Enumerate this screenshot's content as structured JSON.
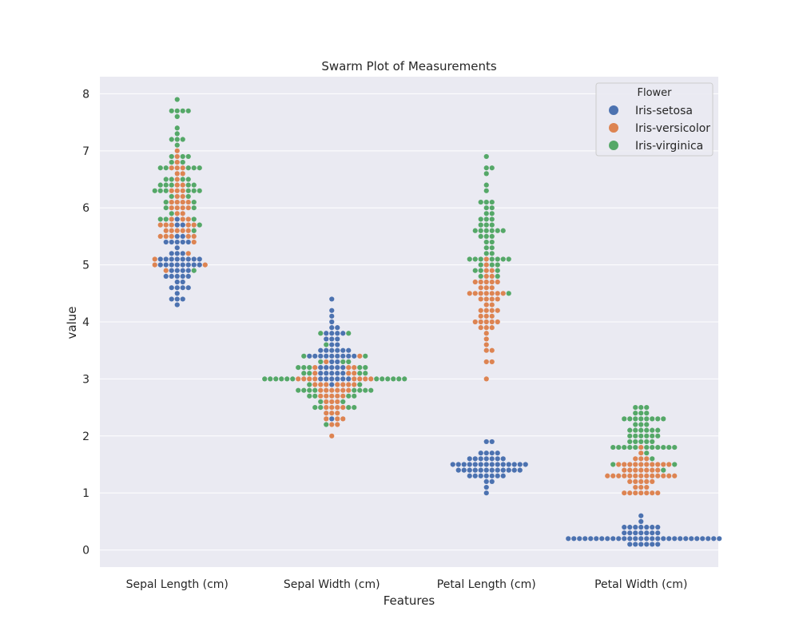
{
  "chart_data": {
    "type": "scatter",
    "subtype": "swarm",
    "title": "Swarm Plot of Measurements",
    "xlabel": "Features",
    "ylabel": "value",
    "categories": [
      "Sepal Length (cm)",
      "Sepal Width (cm)",
      "Petal Length (cm)",
      "Petal Width (cm)"
    ],
    "ylim": [
      -0.3,
      8.3
    ],
    "yticks": [
      0,
      1,
      2,
      3,
      4,
      5,
      6,
      7,
      8
    ],
    "grid": true,
    "background_color": "#eaeaf2",
    "legend": {
      "title": "Flower",
      "placement": "top-right"
    },
    "series": [
      {
        "name": "Iris-setosa",
        "color": "#4c72b0",
        "values": [
          [
            5.1,
            4.9,
            4.7,
            4.6,
            5.0,
            5.4,
            4.6,
            5.0,
            4.4,
            4.9,
            5.4,
            4.8,
            4.8,
            4.3,
            5.8,
            5.7,
            5.4,
            5.1,
            5.7,
            5.1,
            5.4,
            5.1,
            4.6,
            5.1,
            4.8,
            5.0,
            5.0,
            5.2,
            5.2,
            4.7,
            4.8,
            5.4,
            5.2,
            5.5,
            4.9,
            5.0,
            5.5,
            4.9,
            4.4,
            5.1,
            5.0,
            4.5,
            4.4,
            5.0,
            5.1,
            4.8,
            5.1,
            4.6,
            5.3,
            5.0
          ],
          [
            3.5,
            3.0,
            3.2,
            3.1,
            3.6,
            3.9,
            3.4,
            3.4,
            2.9,
            3.1,
            3.7,
            3.4,
            3.0,
            3.0,
            4.0,
            4.4,
            3.9,
            3.5,
            3.8,
            3.8,
            3.4,
            3.7,
            3.6,
            3.3,
            3.4,
            3.0,
            3.4,
            3.5,
            3.4,
            3.2,
            3.1,
            3.4,
            4.1,
            4.2,
            3.1,
            3.2,
            3.5,
            3.1,
            3.0,
            3.4,
            3.5,
            2.3,
            3.2,
            3.5,
            3.8,
            3.0,
            3.8,
            3.2,
            3.7,
            3.3
          ],
          [
            1.4,
            1.4,
            1.3,
            1.5,
            1.4,
            1.7,
            1.4,
            1.5,
            1.4,
            1.5,
            1.5,
            1.6,
            1.4,
            1.1,
            1.2,
            1.5,
            1.3,
            1.4,
            1.7,
            1.5,
            1.7,
            1.5,
            1.0,
            1.7,
            1.9,
            1.6,
            1.6,
            1.5,
            1.4,
            1.6,
            1.6,
            1.5,
            1.5,
            1.4,
            1.5,
            1.2,
            1.3,
            1.5,
            1.3,
            1.5,
            1.3,
            1.3,
            1.3,
            1.6,
            1.9,
            1.4,
            1.6,
            1.4,
            1.5,
            1.4
          ],
          [
            0.2,
            0.2,
            0.2,
            0.2,
            0.2,
            0.4,
            0.3,
            0.2,
            0.2,
            0.1,
            0.2,
            0.2,
            0.1,
            0.1,
            0.2,
            0.4,
            0.4,
            0.3,
            0.3,
            0.3,
            0.2,
            0.4,
            0.2,
            0.5,
            0.2,
            0.2,
            0.4,
            0.2,
            0.2,
            0.2,
            0.2,
            0.4,
            0.1,
            0.2,
            0.1,
            0.2,
            0.2,
            0.1,
            0.2,
            0.2,
            0.3,
            0.3,
            0.2,
            0.6,
            0.4,
            0.3,
            0.2,
            0.2,
            0.2,
            0.2
          ]
        ]
      },
      {
        "name": "Iris-versicolor",
        "color": "#dd8452",
        "values": [
          [
            7.0,
            6.4,
            6.9,
            5.5,
            6.5,
            5.7,
            6.3,
            4.9,
            6.6,
            5.2,
            5.0,
            5.9,
            6.0,
            6.1,
            5.6,
            6.7,
            5.6,
            5.8,
            6.2,
            5.6,
            5.9,
            6.1,
            6.3,
            6.1,
            6.4,
            6.6,
            6.8,
            6.7,
            6.0,
            5.7,
            5.5,
            5.5,
            5.8,
            6.0,
            5.4,
            6.0,
            6.7,
            6.3,
            5.6,
            5.5,
            5.5,
            6.1,
            5.8,
            5.0,
            5.6,
            5.7,
            5.7,
            6.2,
            5.1,
            5.7
          ],
          [
            3.2,
            3.2,
            3.1,
            2.3,
            2.8,
            2.8,
            3.3,
            2.4,
            2.9,
            2.7,
            2.0,
            3.0,
            2.2,
            2.9,
            2.9,
            3.1,
            3.0,
            2.7,
            2.2,
            2.5,
            3.2,
            2.8,
            2.5,
            2.8,
            2.9,
            3.0,
            2.8,
            3.0,
            2.9,
            2.6,
            2.4,
            2.4,
            2.7,
            2.7,
            3.0,
            3.4,
            3.1,
            2.3,
            3.0,
            2.5,
            2.6,
            3.0,
            2.6,
            2.3,
            2.7,
            3.0,
            2.9,
            2.9,
            2.5,
            2.8
          ],
          [
            4.7,
            4.5,
            4.9,
            4.0,
            4.6,
            4.5,
            4.7,
            3.3,
            4.6,
            3.9,
            3.5,
            4.2,
            4.0,
            4.7,
            3.6,
            4.4,
            4.5,
            4.1,
            4.5,
            3.9,
            4.8,
            4.0,
            4.9,
            4.7,
            4.3,
            4.4,
            4.8,
            5.0,
            4.5,
            3.5,
            3.8,
            3.7,
            3.9,
            5.1,
            4.5,
            4.5,
            4.7,
            4.4,
            4.1,
            4.0,
            4.4,
            4.6,
            4.0,
            3.3,
            4.2,
            4.2,
            4.2,
            4.3,
            3.0,
            4.1
          ],
          [
            1.4,
            1.5,
            1.5,
            1.3,
            1.5,
            1.3,
            1.6,
            1.0,
            1.3,
            1.4,
            1.0,
            1.5,
            1.0,
            1.4,
            1.3,
            1.4,
            1.5,
            1.0,
            1.5,
            1.1,
            1.8,
            1.3,
            1.5,
            1.2,
            1.3,
            1.4,
            1.4,
            1.7,
            1.5,
            1.0,
            1.1,
            1.0,
            1.2,
            1.6,
            1.5,
            1.6,
            1.5,
            1.3,
            1.3,
            1.3,
            1.2,
            1.4,
            1.2,
            1.0,
            1.3,
            1.2,
            1.3,
            1.3,
            1.1,
            1.3
          ]
        ]
      },
      {
        "name": "Iris-virginica",
        "color": "#55a868",
        "values": [
          [
            6.3,
            5.8,
            7.1,
            6.3,
            6.5,
            7.6,
            4.9,
            7.3,
            6.7,
            7.2,
            6.5,
            6.4,
            6.8,
            5.7,
            5.8,
            6.4,
            6.5,
            7.7,
            7.7,
            6.0,
            6.9,
            5.6,
            7.7,
            6.3,
            6.7,
            7.2,
            6.2,
            6.1,
            6.4,
            7.2,
            7.4,
            7.9,
            6.4,
            6.3,
            6.1,
            7.7,
            6.3,
            6.4,
            6.0,
            6.9,
            6.7,
            6.9,
            5.8,
            6.8,
            6.7,
            6.7,
            6.3,
            6.5,
            6.2,
            5.9
          ],
          [
            3.3,
            2.7,
            3.0,
            2.9,
            3.0,
            3.0,
            2.5,
            2.9,
            2.5,
            3.6,
            3.2,
            2.7,
            3.0,
            2.5,
            2.8,
            3.2,
            3.0,
            3.8,
            2.6,
            2.2,
            3.2,
            2.8,
            2.8,
            2.7,
            3.3,
            3.2,
            2.8,
            3.0,
            2.8,
            3.0,
            2.8,
            3.8,
            2.8,
            2.8,
            2.6,
            3.0,
            3.4,
            3.1,
            3.0,
            3.1,
            3.1,
            3.1,
            2.7,
            3.2,
            3.3,
            3.0,
            2.5,
            3.0,
            3.4,
            3.0
          ],
          [
            6.0,
            5.1,
            5.9,
            5.6,
            5.8,
            6.6,
            4.5,
            6.3,
            5.8,
            6.1,
            5.1,
            5.3,
            5.5,
            5.0,
            5.1,
            5.3,
            5.5,
            6.7,
            6.9,
            5.0,
            5.7,
            4.9,
            6.7,
            4.9,
            5.7,
            6.0,
            4.8,
            4.9,
            5.6,
            5.8,
            6.1,
            6.4,
            5.6,
            5.1,
            5.6,
            6.1,
            5.6,
            5.5,
            4.8,
            5.4,
            5.6,
            5.1,
            5.1,
            5.9,
            5.7,
            5.2,
            5.0,
            5.2,
            5.4,
            5.1
          ],
          [
            2.5,
            1.9,
            2.1,
            1.8,
            2.2,
            2.1,
            1.7,
            1.8,
            1.8,
            2.5,
            2.0,
            1.9,
            2.1,
            2.0,
            2.4,
            2.3,
            1.8,
            2.2,
            2.3,
            1.5,
            2.3,
            2.0,
            2.0,
            1.8,
            2.1,
            1.8,
            1.8,
            1.8,
            2.1,
            1.6,
            1.9,
            2.0,
            2.2,
            1.5,
            1.4,
            2.3,
            2.4,
            1.8,
            1.8,
            2.1,
            2.4,
            2.3,
            1.9,
            2.3,
            2.5,
            2.3,
            1.9,
            2.0,
            2.3,
            1.8
          ]
        ]
      }
    ]
  }
}
